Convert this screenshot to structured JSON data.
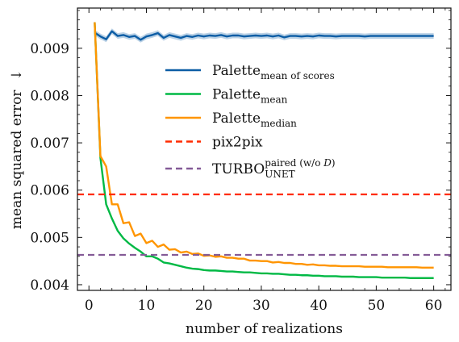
{
  "chart_data": {
    "type": "line",
    "xlabel": "number of realizations",
    "ylabel": "mean squared error",
    "ylabel_arrow": "↓",
    "xlim": [
      -2,
      63
    ],
    "ylim": [
      0.00388,
      0.00985
    ],
    "xticks": [
      0,
      10,
      20,
      30,
      40,
      50,
      60
    ],
    "yticks": [
      0.004,
      0.005,
      0.006,
      0.007,
      0.008,
      0.009
    ],
    "ytick_labels": [
      "0.004",
      "0.005",
      "0.006",
      "0.007",
      "0.008",
      "0.009"
    ],
    "legend_position": "upper-center",
    "series": [
      {
        "name": "Palette",
        "name_sub": "mean of scores",
        "color": "#0C5DA5",
        "style": "solid",
        "band": 6e-05,
        "x": [
          1,
          2,
          3,
          4,
          5,
          6,
          7,
          8,
          9,
          10,
          11,
          12,
          13,
          14,
          15,
          16,
          17,
          18,
          19,
          20,
          21,
          22,
          23,
          24,
          25,
          26,
          27,
          28,
          29,
          30,
          31,
          32,
          33,
          34,
          35,
          36,
          37,
          38,
          39,
          40,
          41,
          42,
          43,
          44,
          45,
          46,
          47,
          48,
          49,
          50,
          51,
          52,
          53,
          54,
          55,
          56,
          57,
          58,
          59,
          60
        ],
        "y": [
          0.00933,
          0.00925,
          0.00919,
          0.00936,
          0.00926,
          0.00928,
          0.00924,
          0.00926,
          0.00918,
          0.00925,
          0.00928,
          0.00932,
          0.00922,
          0.00928,
          0.00925,
          0.00922,
          0.00926,
          0.00924,
          0.00927,
          0.00925,
          0.00927,
          0.00926,
          0.00928,
          0.00925,
          0.00927,
          0.00927,
          0.00925,
          0.00926,
          0.00927,
          0.00926,
          0.00927,
          0.00925,
          0.00927,
          0.00923,
          0.00926,
          0.00926,
          0.00925,
          0.00926,
          0.00925,
          0.00927,
          0.00926,
          0.00926,
          0.00925,
          0.00926,
          0.00926,
          0.00926,
          0.00926,
          0.00925,
          0.00926,
          0.00926,
          0.00926,
          0.00926,
          0.00926,
          0.00926,
          0.00926,
          0.00926,
          0.00926,
          0.00926,
          0.00926,
          0.00926
        ]
      },
      {
        "name": "Palette",
        "name_sub": "mean",
        "color": "#00B945",
        "style": "solid",
        "x": [
          1,
          2,
          3,
          4,
          5,
          6,
          7,
          8,
          9,
          10,
          11,
          12,
          13,
          14,
          15,
          16,
          17,
          18,
          19,
          20,
          21,
          22,
          23,
          24,
          25,
          26,
          27,
          28,
          29,
          30,
          31,
          32,
          33,
          34,
          35,
          36,
          37,
          38,
          39,
          40,
          41,
          42,
          43,
          44,
          45,
          46,
          47,
          48,
          49,
          50,
          51,
          52,
          53,
          54,
          55,
          56,
          57,
          58,
          59,
          60
        ],
        "y": [
          0.00955,
          0.00668,
          0.0057,
          0.0054,
          0.00514,
          0.00498,
          0.00487,
          0.00478,
          0.0047,
          0.0046,
          0.0046,
          0.00455,
          0.00447,
          0.00445,
          0.00442,
          0.00439,
          0.00436,
          0.00434,
          0.00433,
          0.00431,
          0.0043,
          0.0043,
          0.00429,
          0.00428,
          0.00428,
          0.00427,
          0.00426,
          0.00426,
          0.00425,
          0.00424,
          0.00424,
          0.00423,
          0.00423,
          0.00422,
          0.00421,
          0.00421,
          0.0042,
          0.0042,
          0.00419,
          0.00419,
          0.00418,
          0.00418,
          0.00418,
          0.00417,
          0.00417,
          0.00417,
          0.00416,
          0.00416,
          0.00416,
          0.00416,
          0.00415,
          0.00415,
          0.00415,
          0.00415,
          0.00415,
          0.00414,
          0.00414,
          0.00414,
          0.00414,
          0.00414
        ]
      },
      {
        "name": "Palette",
        "name_sub": "median",
        "color": "#FF9500",
        "style": "solid",
        "x": [
          1,
          2,
          3,
          4,
          5,
          6,
          7,
          8,
          9,
          10,
          11,
          12,
          13,
          14,
          15,
          16,
          17,
          18,
          19,
          20,
          21,
          22,
          23,
          24,
          25,
          26,
          27,
          28,
          29,
          30,
          31,
          32,
          33,
          34,
          35,
          36,
          37,
          38,
          39,
          40,
          41,
          42,
          43,
          44,
          45,
          46,
          47,
          48,
          49,
          50,
          51,
          52,
          53,
          54,
          55,
          56,
          57,
          58,
          59,
          60
        ],
        "y": [
          0.00955,
          0.00672,
          0.0065,
          0.0057,
          0.0057,
          0.0053,
          0.00532,
          0.00503,
          0.00508,
          0.00488,
          0.00493,
          0.0048,
          0.00485,
          0.00474,
          0.00475,
          0.00468,
          0.0047,
          0.00465,
          0.00466,
          0.00461,
          0.00462,
          0.00459,
          0.0046,
          0.00457,
          0.00457,
          0.00455,
          0.00455,
          0.00451,
          0.00451,
          0.0045,
          0.0045,
          0.00447,
          0.00448,
          0.00446,
          0.00446,
          0.00444,
          0.00444,
          0.00442,
          0.00443,
          0.00441,
          0.00441,
          0.0044,
          0.0044,
          0.00439,
          0.00439,
          0.00439,
          0.00439,
          0.00438,
          0.00438,
          0.00438,
          0.00438,
          0.00437,
          0.00437,
          0.00437,
          0.00437,
          0.00437,
          0.00437,
          0.00436,
          0.00436,
          0.00436
        ]
      },
      {
        "name": "pix2pix",
        "color": "#FF2C00",
        "style": "dashed",
        "constant": 0.00591
      },
      {
        "name": "TURBO",
        "name_sup": "paired (w/o ",
        "name_sup_script": "D",
        "name_sup_close": ")",
        "name_sub": "UNET",
        "color": "#845B97",
        "style": "dashed",
        "constant": 0.00463
      }
    ]
  }
}
